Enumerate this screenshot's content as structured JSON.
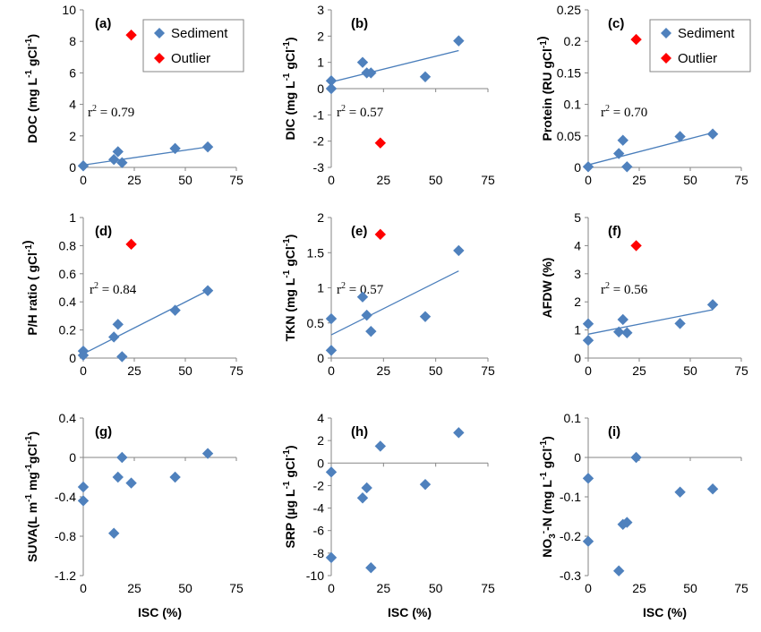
{
  "colors": {
    "sediment": "#4f81bd",
    "outlier": "#ff0000",
    "fit": "#4a7ebb"
  },
  "legend": {
    "sediment": "Sediment",
    "outlier": "Outlier"
  },
  "chart_data": [
    {
      "id": "a",
      "type": "scatter",
      "letter": "(a)",
      "ylabel_pre": "DOC (mg L",
      "ylabel_sup1": "-1",
      "ylabel_mid": " gCl",
      "ylabel_sup2": "-1",
      "ylabel_post": ")",
      "xlabel": "",
      "xlim": [
        0,
        75
      ],
      "xticks": [
        "0",
        "25",
        "50",
        "75"
      ],
      "ylim": [
        0,
        10
      ],
      "yticks": [
        "0",
        "2",
        "4",
        "6",
        "8",
        "10"
      ],
      "sediment": [
        [
          0,
          0.1
        ],
        [
          15,
          0.5
        ],
        [
          17,
          1.0
        ],
        [
          19,
          0.3
        ],
        [
          45,
          1.2
        ],
        [
          61,
          1.3
        ]
      ],
      "outlier": [
        [
          23.5,
          8.4
        ]
      ],
      "fit": [
        [
          0,
          0.15
        ],
        [
          61,
          1.3
        ]
      ],
      "r2": "= 0.79",
      "legend": true
    },
    {
      "id": "b",
      "type": "scatter",
      "letter": "(b)",
      "ylabel_pre": "DIC (mg L",
      "ylabel_sup1": "-1",
      "ylabel_mid": " gCl",
      "ylabel_sup2": "-1",
      "ylabel_post": ")",
      "xlabel": "",
      "xlim": [
        0,
        75
      ],
      "xticks": [
        "0",
        "25",
        "50",
        "75"
      ],
      "ylim": [
        -3,
        3
      ],
      "yticks": [
        "-3",
        "-2",
        "-1",
        "0",
        "1",
        "2",
        "3"
      ],
      "sediment": [
        [
          0,
          0.3
        ],
        [
          0,
          0.0
        ],
        [
          15,
          1.0
        ],
        [
          17,
          0.6
        ],
        [
          19,
          0.6
        ],
        [
          45,
          0.45
        ],
        [
          61,
          1.82
        ]
      ],
      "outlier": [
        [
          23.5,
          -2.07
        ]
      ],
      "fit": [
        [
          0,
          0.25
        ],
        [
          61,
          1.45
        ]
      ],
      "r2": "= 0.57",
      "legend": false
    },
    {
      "id": "c",
      "type": "scatter",
      "letter": "(c)",
      "ylabel_pre": "Protein (RU  gCl",
      "ylabel_sup1": "-1",
      "ylabel_mid": "",
      "ylabel_sup2": "",
      "ylabel_post": ")",
      "xlabel": "",
      "xlim": [
        0,
        75
      ],
      "xticks": [
        "0",
        "25",
        "50",
        "75"
      ],
      "ylim": [
        0,
        0.25
      ],
      "yticks": [
        "0",
        "0.05",
        "0.1",
        "0.15",
        "0.2",
        "0.25"
      ],
      "sediment": [
        [
          0,
          0.001
        ],
        [
          15,
          0.022
        ],
        [
          17,
          0.043
        ],
        [
          19,
          0.001
        ],
        [
          45,
          0.049
        ],
        [
          61,
          0.053
        ]
      ],
      "outlier": [
        [
          23.5,
          0.203
        ]
      ],
      "fit": [
        [
          0,
          0.004
        ],
        [
          61,
          0.055
        ]
      ],
      "r2": "= 0.70",
      "legend": true
    },
    {
      "id": "d",
      "type": "scatter",
      "letter": "(d)",
      "ylabel_pre": "P/H ratio ( gCl",
      "ylabel_sup1": "-1",
      "ylabel_mid": "",
      "ylabel_sup2": "",
      "ylabel_post": ")",
      "xlabel": "",
      "xlim": [
        0,
        75
      ],
      "xticks": [
        "0",
        "25",
        "50",
        "75"
      ],
      "ylim": [
        0,
        1
      ],
      "yticks": [
        "0",
        "0.2",
        "0.4",
        "0.6",
        "0.8",
        "1"
      ],
      "sediment": [
        [
          0,
          0.05
        ],
        [
          0,
          0.02
        ],
        [
          15,
          0.15
        ],
        [
          17,
          0.24
        ],
        [
          19,
          0.01
        ],
        [
          45,
          0.34
        ],
        [
          61,
          0.48
        ]
      ],
      "outlier": [
        [
          23.5,
          0.81
        ]
      ],
      "fit": [
        [
          0,
          0.03
        ],
        [
          61,
          0.48
        ]
      ],
      "r2": "= 0.84",
      "legend": false
    },
    {
      "id": "e",
      "type": "scatter",
      "letter": "(e)",
      "ylabel_pre": "TKN (mg L",
      "ylabel_sup1": "-1",
      "ylabel_mid": " gCl",
      "ylabel_sup2": "-1",
      "ylabel_post": ")",
      "xlabel": "",
      "xlim": [
        0,
        75
      ],
      "xticks": [
        "0",
        "25",
        "50",
        "75"
      ],
      "ylim": [
        0,
        2
      ],
      "yticks": [
        "0",
        "0.5",
        "1",
        "1.5",
        "2"
      ],
      "sediment": [
        [
          0,
          0.56
        ],
        [
          0,
          0.11
        ],
        [
          15,
          0.87
        ],
        [
          17,
          0.61
        ],
        [
          19,
          0.38
        ],
        [
          45,
          0.59
        ],
        [
          61,
          1.53
        ]
      ],
      "outlier": [
        [
          23.5,
          1.76
        ]
      ],
      "fit": [
        [
          0,
          0.33
        ],
        [
          61,
          1.24
        ]
      ],
      "r2": "= 0.57",
      "legend": false
    },
    {
      "id": "f",
      "type": "scatter",
      "letter": "(f)",
      "ylabel_pre": "AFDW (%)",
      "ylabel_sup1": "",
      "ylabel_mid": "",
      "ylabel_sup2": "",
      "ylabel_post": "",
      "xlabel": "",
      "xlim": [
        0,
        75
      ],
      "xticks": [
        "0",
        "25",
        "50",
        "75"
      ],
      "ylim": [
        0,
        5
      ],
      "yticks": [
        "0",
        "1",
        "2",
        "3",
        "4",
        "5"
      ],
      "sediment": [
        [
          0,
          1.22
        ],
        [
          0,
          0.63
        ],
        [
          15,
          0.93
        ],
        [
          17,
          1.37
        ],
        [
          19,
          0.9
        ],
        [
          45,
          1.23
        ],
        [
          61,
          1.9
        ]
      ],
      "outlier": [
        [
          23.5,
          4.0
        ]
      ],
      "fit": [
        [
          0,
          0.85
        ],
        [
          61,
          1.72
        ]
      ],
      "r2": "= 0.56",
      "legend": false
    },
    {
      "id": "g",
      "type": "scatter",
      "letter": "(g)",
      "ylabel_pre": "SUVA(L m",
      "ylabel_sup1": "-1",
      "ylabel_mid": " mg",
      "ylabel_sup2": "-1",
      "ylabel_post": "gCl",
      "ylabel_sup3": "-1",
      "ylabel_end": ")",
      "xlabel": "ISC (%)",
      "xlim": [
        0,
        75
      ],
      "xticks": [
        "0",
        "25",
        "50",
        "75"
      ],
      "ylim": [
        -1.2,
        0.4
      ],
      "yticks": [
        "-1.2",
        "-0.8",
        "-0.4",
        "0",
        "0.4"
      ],
      "sediment": [
        [
          0,
          -0.3
        ],
        [
          0,
          -0.44
        ],
        [
          15,
          -0.77
        ],
        [
          17,
          -0.2
        ],
        [
          19,
          0.0
        ],
        [
          23.5,
          -0.26
        ],
        [
          45,
          -0.2
        ],
        [
          61,
          0.04
        ]
      ],
      "outlier": [],
      "fit": null,
      "r2": "",
      "legend": false
    },
    {
      "id": "h",
      "type": "scatter",
      "letter": "(h)",
      "ylabel_pre": "SRP (µg L",
      "ylabel_sup1": "-1",
      "ylabel_mid": " gCl",
      "ylabel_sup2": "-1",
      "ylabel_post": ")",
      "xlabel": "ISC (%)",
      "xlim": [
        0,
        75
      ],
      "xticks": [
        "0",
        "25",
        "50",
        "75"
      ],
      "ylim": [
        -10,
        4
      ],
      "yticks": [
        "-10",
        "-8",
        "-6",
        "-4",
        "-2",
        "0",
        "2",
        "4"
      ],
      "sediment": [
        [
          0,
          -0.8
        ],
        [
          0,
          -8.4
        ],
        [
          15,
          -3.1
        ],
        [
          17,
          -2.2
        ],
        [
          19,
          -9.3
        ],
        [
          23.5,
          1.5
        ],
        [
          45,
          -1.9
        ],
        [
          61,
          2.7
        ]
      ],
      "outlier": [],
      "fit": null,
      "r2": "",
      "legend": false
    },
    {
      "id": "i",
      "type": "scatter",
      "letter": "(i)",
      "ylabel_pre": "NO",
      "ylabel_sub": "3",
      "ylabel_dash": "-",
      "ylabel_sup1": "",
      "ylabel_mid": "-N (mg L",
      "ylabel_sup2": "-1",
      "ylabel_post": " gCl",
      "ylabel_sup3": "-1",
      "ylabel_end": ")",
      "xlabel": "ISC (%)",
      "xlim": [
        0,
        75
      ],
      "xticks": [
        "0",
        "25",
        "50",
        "75"
      ],
      "ylim": [
        -0.3,
        0.1
      ],
      "yticks": [
        "-0.3",
        "-0.2",
        "-0.1",
        "0",
        "0.1"
      ],
      "sediment": [
        [
          0,
          -0.053
        ],
        [
          0,
          -0.213
        ],
        [
          15,
          -0.288
        ],
        [
          17,
          -0.17
        ],
        [
          19,
          -0.165
        ],
        [
          23.5,
          0.0
        ],
        [
          45,
          -0.088
        ],
        [
          61,
          -0.08
        ]
      ],
      "outlier": [],
      "fit": null,
      "r2": "",
      "legend": false
    }
  ]
}
